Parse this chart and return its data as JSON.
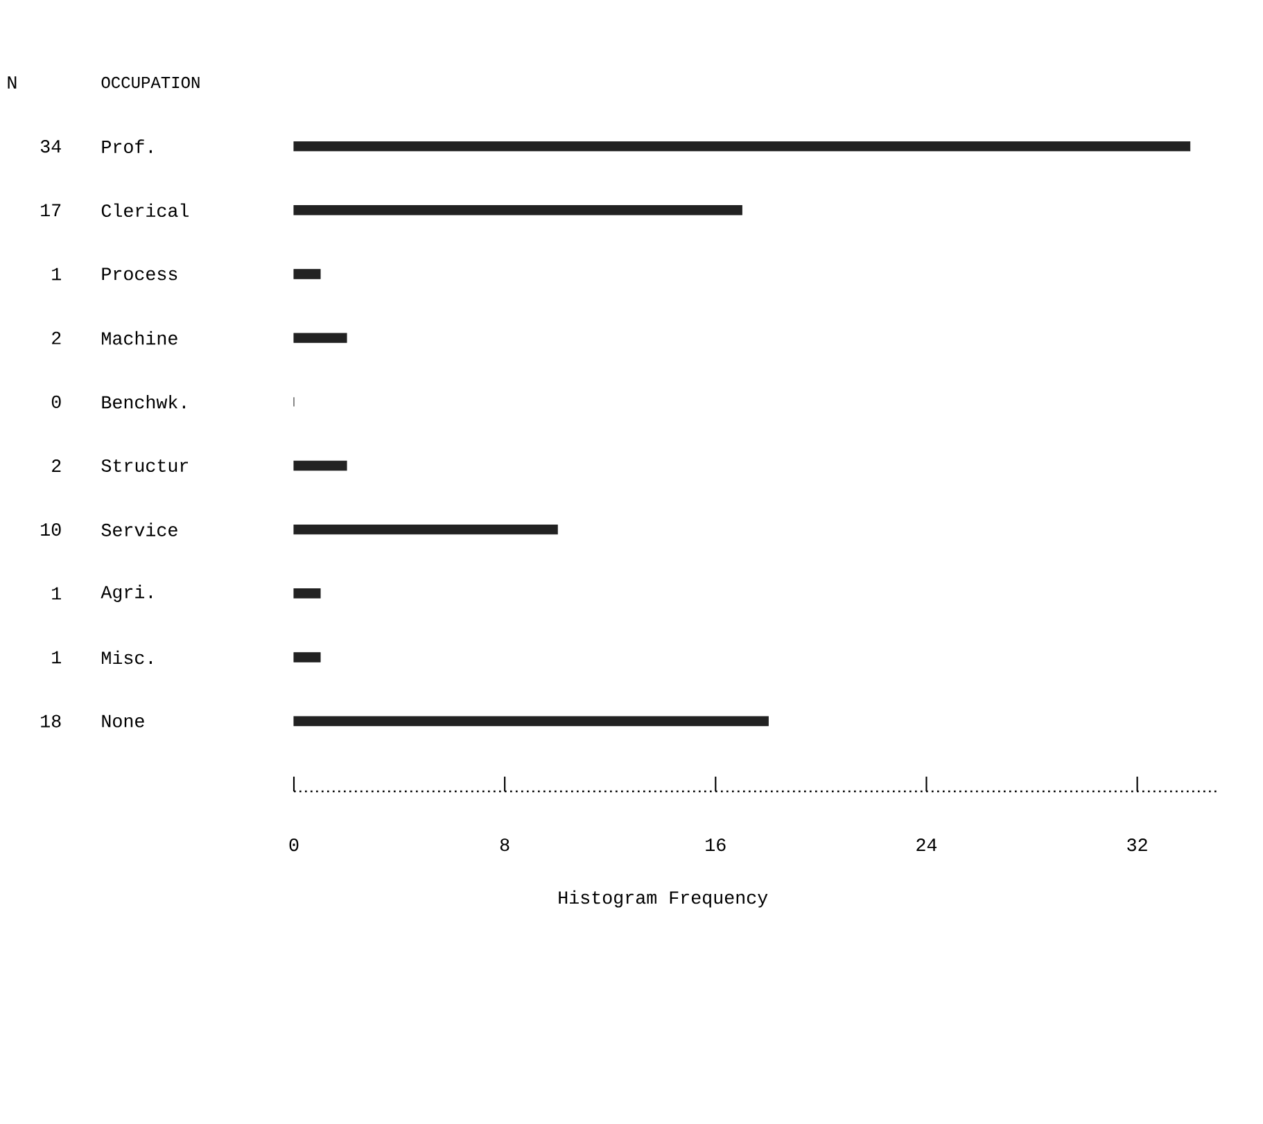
{
  "chart_data": {
    "type": "bar",
    "orientation": "horizontal",
    "ylabel": "OCCUPATION",
    "xlabel": "Histogram Frequency",
    "annotations": [
      "N"
    ],
    "categories": [
      "Prof.",
      "Clerical",
      "Process",
      "Machine",
      "Benchwk.",
      "Structur",
      "Service",
      "Agri.",
      "Misc.",
      "None"
    ],
    "values": [
      34,
      17,
      1,
      2,
      0,
      2,
      10,
      1,
      1,
      18
    ],
    "color": "#222222",
    "data_labels": true,
    "xlim": [
      0,
      35
    ],
    "xticks": [
      0,
      8,
      16,
      24,
      32
    ]
  }
}
